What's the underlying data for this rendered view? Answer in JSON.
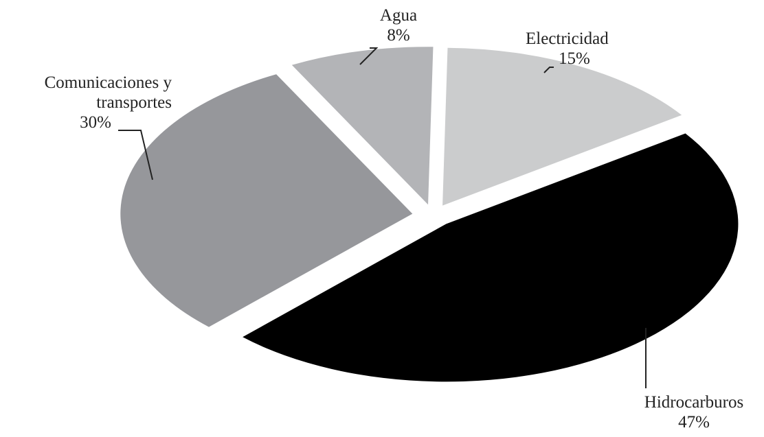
{
  "chart_data": {
    "type": "pie",
    "title": "",
    "slices": [
      {
        "label_lines": [
          "Hidrocarburos"
        ],
        "value_label": "47%",
        "value": 47,
        "color": "#000000"
      },
      {
        "label_lines": [
          "Comunicaciones y",
          "transportes"
        ],
        "value_label": "30%",
        "value": 30,
        "color": "#96979b"
      },
      {
        "label_lines": [
          "Agua"
        ],
        "value_label": "8%",
        "value": 8,
        "color": "#b3b4b7"
      },
      {
        "label_lines": [
          "Electricidad"
        ],
        "value_label": "15%",
        "value": 15,
        "color": "#cbcccd"
      }
    ],
    "legend": "none",
    "exploded": true,
    "perspective": "tilted"
  }
}
